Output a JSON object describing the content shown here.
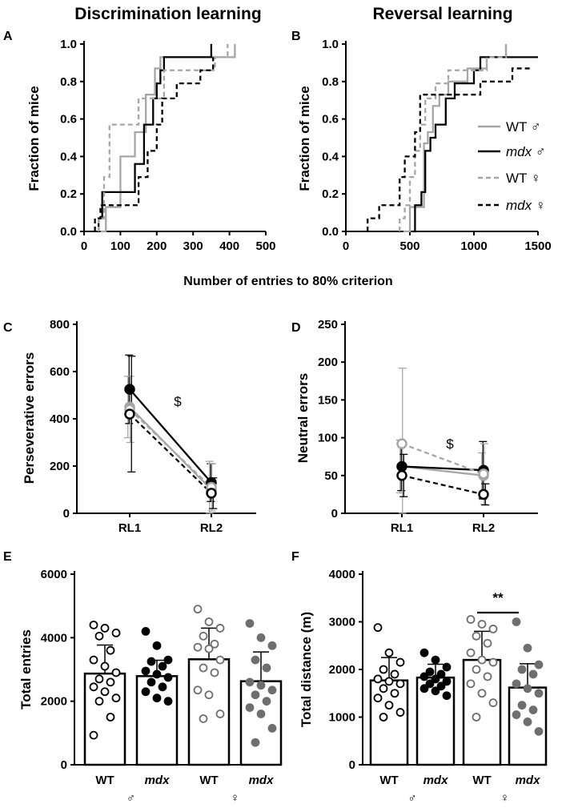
{
  "panels": [
    {
      "id": "A",
      "label": "A"
    },
    {
      "id": "B",
      "label": "B"
    },
    {
      "id": "C",
      "label": "C"
    },
    {
      "id": "D",
      "label": "D"
    },
    {
      "id": "E",
      "label": "E"
    },
    {
      "id": "F",
      "label": "F"
    }
  ],
  "headers": {
    "left": "Discrimination learning",
    "right": "Reversal learning"
  },
  "shared_xlabel_AB": "Number of entries to 80% criterion",
  "legend": [
    {
      "label": "WT ♂",
      "italic": false,
      "color": "#a6a6a6",
      "dash": false
    },
    {
      "label": "mdx ♂",
      "italic": true,
      "color": "#000000",
      "dash": false
    },
    {
      "label": "WT ♀",
      "italic": false,
      "color": "#a6a6a6",
      "dash": true
    },
    {
      "label": "mdx ♀",
      "italic": true,
      "color": "#000000",
      "dash": true
    }
  ],
  "colors": {
    "wt_male": "#a6a6a6",
    "mdx_male": "#000000",
    "wt_female": "#a6a6a6",
    "mdx_female": "#000000",
    "female_dot": "#6e6e6e"
  },
  "chart_data": [
    {
      "id": "A",
      "type": "line",
      "step": true,
      "title": "Discrimination learning",
      "xlabel": "Number of entries to 80% criterion",
      "ylabel": "Fraction of mice",
      "xlim": [
        0,
        500
      ],
      "ylim": [
        0,
        1.0
      ],
      "xticks": [
        "0",
        "100",
        "200",
        "300",
        "400",
        "500"
      ],
      "yticks": [
        "0.0",
        "0.2",
        "0.4",
        "0.6",
        "0.8",
        "1.0"
      ],
      "series": [
        {
          "name": "WT ♂",
          "x": [
            45,
            60,
            100,
            140,
            170,
            195,
            210,
            350,
            375,
            415
          ],
          "y": [
            0,
            0.13,
            0.4,
            0.53,
            0.73,
            0.87,
            0.93,
            0.93,
            0.93,
            1.0
          ]
        },
        {
          "name": "mdx ♂",
          "x": [
            40,
            50,
            120,
            140,
            165,
            190,
            200,
            210,
            220,
            240,
            350
          ],
          "y": [
            0.07,
            0.21,
            0.21,
            0.36,
            0.57,
            0.71,
            0.79,
            0.86,
            0.93,
            0.93,
            1.0
          ]
        },
        {
          "name": "WT ♀",
          "x": [
            40,
            55,
            70,
            120,
            150,
            180,
            200,
            220,
            260,
            360,
            395
          ],
          "y": [
            0.07,
            0.29,
            0.57,
            0.57,
            0.71,
            0.71,
            0.71,
            0.86,
            0.86,
            0.93,
            1.0
          ]
        },
        {
          "name": "mdx ♀",
          "x": [
            30,
            45,
            70,
            90,
            150,
            175,
            200,
            215,
            240,
            255,
            320,
            355
          ],
          "y": [
            0.07,
            0.14,
            0.14,
            0.14,
            0.29,
            0.43,
            0.57,
            0.71,
            0.71,
            0.79,
            0.86,
            0.93
          ]
        }
      ]
    },
    {
      "id": "B",
      "type": "line",
      "step": true,
      "title": "Reversal learning",
      "xlabel": "Number of entries to 80% criterion",
      "ylabel": "Fraction of mice",
      "xlim": [
        0,
        1500
      ],
      "ylim": [
        0,
        1.0
      ],
      "xticks": [
        "0",
        "500",
        "1000",
        "1500"
      ],
      "yticks": [
        "0.0",
        "0.2",
        "0.4",
        "0.6",
        "0.8",
        "1.0"
      ],
      "series": [
        {
          "name": "WT ♂",
          "x": [
            450,
            500,
            580,
            610,
            640,
            680,
            730,
            800,
            950,
            1100,
            1180,
            1250
          ],
          "y": [
            0,
            0.13,
            0.13,
            0.47,
            0.53,
            0.67,
            0.73,
            0.8,
            0.87,
            0.93,
            0.93,
            1.0
          ]
        },
        {
          "name": "mdx ♂",
          "x": [
            520,
            540,
            590,
            620,
            660,
            700,
            780,
            850,
            1000,
            1050,
            1100,
            1500
          ],
          "y": [
            0,
            0.14,
            0.21,
            0.43,
            0.5,
            0.57,
            0.71,
            0.79,
            0.86,
            0.93,
            0.93,
            0.93
          ]
        },
        {
          "name": "WT ♀",
          "x": [
            420,
            460,
            500,
            540,
            580,
            620,
            650,
            700,
            800,
            1100,
            1250
          ],
          "y": [
            0.07,
            0.14,
            0.29,
            0.43,
            0.57,
            0.71,
            0.71,
            0.79,
            0.86,
            0.93,
            1.0
          ]
        },
        {
          "name": "mdx ♀",
          "x": [
            170,
            200,
            260,
            360,
            420,
            460,
            540,
            580,
            620,
            820,
            1050,
            1300,
            1450
          ],
          "y": [
            0.07,
            0.07,
            0.14,
            0.14,
            0.29,
            0.4,
            0.53,
            0.73,
            0.73,
            0.73,
            0.8,
            0.87,
            0.87
          ]
        }
      ]
    },
    {
      "id": "C",
      "type": "line",
      "ylabel": "Perseverative errors",
      "ylim": [
        0,
        800
      ],
      "categories": [
        "RL1",
        "RL2"
      ],
      "yticks": [
        "0",
        "200",
        "400",
        "600",
        "800"
      ],
      "annotation": "$",
      "series": [
        {
          "name": "WT ♂",
          "values": [
            450,
            100
          ],
          "err": [
            130,
            120
          ]
        },
        {
          "name": "mdx ♂",
          "values": [
            525,
            130
          ],
          "err": [
            145,
            80
          ]
        },
        {
          "name": "WT ♀",
          "values": [
            440,
            110
          ],
          "err": [
            140,
            100
          ]
        },
        {
          "name": "mdx ♀",
          "values": [
            420,
            85
          ],
          "err": [
            245,
            65
          ]
        }
      ]
    },
    {
      "id": "D",
      "type": "line",
      "ylabel": "Neutral errors",
      "ylim": [
        0,
        250
      ],
      "categories": [
        "RL1",
        "RL2"
      ],
      "yticks": [
        "0",
        "50",
        "100",
        "150",
        "200",
        "250"
      ],
      "annotation": "$",
      "series": [
        {
          "name": "WT ♂",
          "values": [
            62,
            50
          ],
          "err": [
            35,
            30
          ]
        },
        {
          "name": "mdx ♂",
          "values": [
            62,
            57
          ],
          "err": [
            32,
            38
          ]
        },
        {
          "name": "WT ♀",
          "values": [
            92,
            52
          ],
          "err": [
            100,
            40
          ]
        },
        {
          "name": "mdx ♀",
          "values": [
            50,
            25
          ],
          "err": [
            28,
            14
          ]
        }
      ]
    },
    {
      "id": "E",
      "type": "bar",
      "ylabel": "Total entries",
      "ylim": [
        0,
        6000
      ],
      "categories": [
        "WT",
        "mdx",
        "WT",
        "mdx"
      ],
      "category_italic": [
        false,
        true,
        false,
        true
      ],
      "sex_labels": [
        "♂",
        "♀"
      ],
      "yticks": [
        "0",
        "2000",
        "4000",
        "6000"
      ],
      "values": [
        2870,
        2790,
        3320,
        2630
      ],
      "err": [
        900,
        500,
        980,
        920
      ],
      "points": [
        [
          4400,
          4300,
          4150,
          4050,
          3600,
          3300,
          3100,
          2900,
          2700,
          2600,
          2450,
          2300,
          2100,
          2000,
          1500,
          930
        ],
        [
          4200,
          3750,
          3300,
          3250,
          3100,
          2950,
          2850,
          2750,
          2600,
          2450,
          2300,
          2100,
          2000
        ],
        [
          4900,
          4500,
          4300,
          4050,
          3800,
          3700,
          3650,
          3300,
          3050,
          2900,
          2350,
          2200,
          1600,
          1450
        ],
        [
          4450,
          4000,
          3750,
          3300,
          3050,
          2600,
          2500,
          2350,
          2200,
          2000,
          1800,
          1600,
          1150,
          700
        ]
      ]
    },
    {
      "id": "F",
      "type": "bar",
      "ylabel": "Total distance (m)",
      "ylim": [
        0,
        4000
      ],
      "categories": [
        "WT",
        "mdx",
        "WT",
        "mdx"
      ],
      "category_italic": [
        false,
        true,
        false,
        true
      ],
      "sex_labels": [
        "♂",
        "♀"
      ],
      "yticks": [
        "0",
        "1000",
        "2000",
        "3000",
        "4000"
      ],
      "values": [
        1770,
        1830,
        2200,
        1620
      ],
      "err": [
        480,
        280,
        600,
        500
      ],
      "significance": "**",
      "points": [
        [
          2880,
          2350,
          2150,
          2000,
          1900,
          1800,
          1750,
          1700,
          1600,
          1500,
          1400,
          1250,
          1100,
          1000
        ],
        [
          2350,
          2200,
          2050,
          1950,
          1900,
          1850,
          1800,
          1750,
          1700,
          1650,
          1600,
          1550,
          1450
        ],
        [
          3050,
          2950,
          2850,
          2700,
          2550,
          2350,
          2200,
          2150,
          2000,
          1850,
          1700,
          1500,
          1300,
          1000
        ],
        [
          3000,
          2450,
          2100,
          2000,
          1900,
          1700,
          1600,
          1500,
          1250,
          1150,
          1050,
          900,
          700
        ]
      ]
    }
  ]
}
